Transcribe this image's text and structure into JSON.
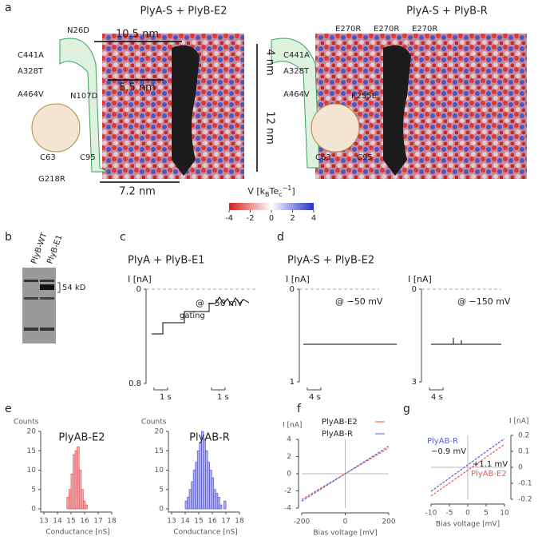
{
  "figure": {
    "a": {
      "label": "a",
      "left_title": "PlyA-S + PlyB-E2",
      "right_title": "PlyA-S + PlyB-R",
      "left_annotations": [
        "N26D",
        "C441A",
        "A328T",
        "A464V",
        "N107D",
        "C63",
        "C95",
        "G218R"
      ],
      "right_annotations": [
        "E270R",
        "E270R",
        "E270R",
        "C441A",
        "A328T",
        "A464V",
        "K255E",
        "C63",
        "C95"
      ],
      "dimensions": [
        "10.5 nm",
        "5.5 nm",
        "7.2 nm",
        "4 nm",
        "12 nm"
      ],
      "colorbar": {
        "label": {
          "start": "V [k",
          "sub1": "B",
          "mid": "Te",
          "sub2": "c",
          "sup": "−1",
          "end": "]"
        },
        "lim": [
          -4,
          4
        ],
        "ticks": [
          -4,
          -2,
          0,
          2,
          4
        ]
      }
    },
    "b": {
      "label": "b",
      "lanes": [
        "PlyB-WT",
        "PlyB-E1"
      ],
      "marker": "54 kD"
    },
    "c": {
      "label": "c",
      "title": "PlyA + PlyB-E1",
      "ylabel": "I [nA]",
      "yticks": [
        0,
        0.8
      ],
      "voltage": "@ −50 mV",
      "annotation": "gating",
      "scale_bars": [
        "1 s",
        "1 s"
      ]
    },
    "d": {
      "label": "d",
      "title": "PlyA-S + PlyB-E2",
      "traces": [
        {
          "ylabel": "I [nA]",
          "yticks": [
            0,
            1
          ],
          "voltage": "@ −50 mV",
          "scale_bar": "4 s"
        },
        {
          "ylabel": "I [nA]",
          "yticks": [
            0,
            3
          ],
          "voltage": "@ −150 mV",
          "scale_bar": "4 s"
        }
      ]
    },
    "e": {
      "label": "e"
    },
    "f": {
      "label": "f"
    },
    "g": {
      "label": "g"
    }
  },
  "chart_data": [
    {
      "type": "histogram",
      "title": "PlyAB-E2",
      "ylabel": "Counts",
      "xlabel": "Conductance [nS]",
      "color": "#e8575a",
      "bins": [
        14.7,
        14.85,
        15.0,
        15.15,
        15.3,
        15.45,
        15.6,
        15.75,
        15.9,
        16.05,
        16.2
      ],
      "values": [
        3,
        5,
        9,
        14,
        15,
        16,
        10,
        5,
        2,
        1
      ],
      "xlim": [
        13,
        18
      ],
      "xticks": [
        13,
        14,
        15,
        16,
        17,
        18
      ],
      "ylim": [
        0,
        20
      ],
      "yticks": [
        0,
        5,
        10,
        15,
        20
      ]
    },
    {
      "type": "histogram",
      "title": "PlyAB-R",
      "ylabel": "Counts",
      "xlabel": "Conductance [nS]",
      "color": "#5d5fd6",
      "bins": [
        14.0,
        14.15,
        14.3,
        14.45,
        14.6,
        14.75,
        14.9,
        15.05,
        15.2,
        15.35,
        15.5,
        15.65,
        15.8,
        15.95,
        16.1,
        16.25,
        16.4,
        16.55,
        16.7,
        16.85,
        17.0
      ],
      "values": [
        2,
        3,
        5,
        7,
        10,
        12,
        15,
        17,
        20,
        18,
        15,
        12,
        10,
        8,
        5,
        4,
        3,
        1,
        0,
        2
      ],
      "xlim": [
        13,
        18
      ],
      "xticks": [
        13,
        14,
        15,
        16,
        17,
        18
      ],
      "ylim": [
        0,
        20
      ],
      "yticks": [
        0,
        5,
        10,
        15,
        20
      ]
    },
    {
      "type": "line",
      "ylabel": "I [nA]",
      "xlabel": "Bias voltage [mV]",
      "legend": "upper left",
      "x": [
        -200,
        200
      ],
      "xlim": [
        -200,
        200
      ],
      "xticks": [
        -200,
        0,
        200
      ],
      "ylim": [
        -4,
        4
      ],
      "yticks": [
        -4,
        -2,
        0,
        2,
        4
      ],
      "series": [
        {
          "name": "PlyAB-E2",
          "color": "#e8575a",
          "values": [
            -3.0,
            3.0
          ]
        },
        {
          "name": "PlyAB-R",
          "color": "#5d5fd6",
          "values": [
            -3.2,
            3.2
          ]
        }
      ]
    },
    {
      "type": "line",
      "ylabel": "I [nA]",
      "xlabel": "Bias voltage [mV]",
      "legend": "inline",
      "x": [
        -10,
        10
      ],
      "xlim": [
        -10,
        10
      ],
      "xticks": [
        -10,
        -5,
        0,
        5,
        10
      ],
      "y2lim": [
        -0.2,
        0.2
      ],
      "y2ticks": [
        -0.2,
        -0.1,
        0,
        0.1,
        0.2
      ],
      "annotations": [
        "−0.9 mV",
        "+1.1 mV"
      ],
      "series": [
        {
          "name": "PlyAB-R",
          "color": "#5d5fd6",
          "axis": "y2",
          "values": [
            -0.15,
            0.18
          ]
        },
        {
          "name": "PlyAB-E2",
          "color": "#e8575a",
          "axis": "y2",
          "values": [
            -0.18,
            0.144
          ]
        }
      ]
    }
  ]
}
